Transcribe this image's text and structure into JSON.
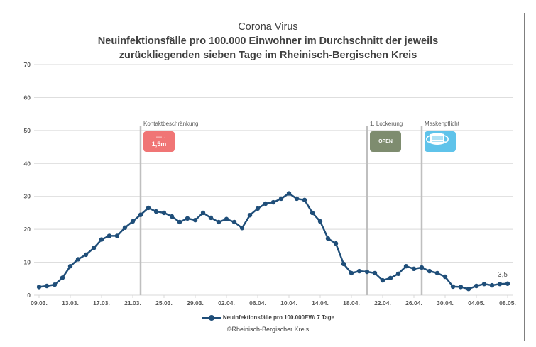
{
  "chart_data": {
    "type": "line",
    "title": "Corona Virus",
    "subtitle_lines": [
      "Neuinfektionsfälle pro 100.000 Einwohner im Durchschnitt der jeweils",
      "zurückliegenden sieben Tage im Rheinisch-Bergischen Kreis"
    ],
    "xlabel": "",
    "ylabel": "",
    "ylim": [
      0,
      70
    ],
    "yticks": [
      0,
      10,
      20,
      30,
      40,
      50,
      60,
      70
    ],
    "grid": true,
    "x": [
      "09.03.",
      "10.03.",
      "11.03.",
      "12.03.",
      "13.03.",
      "14.03.",
      "15.03.",
      "16.03.",
      "17.03.",
      "18.03.",
      "19.03.",
      "20.03.",
      "21.03.",
      "22.03.",
      "23.03.",
      "24.03.",
      "25.03.",
      "26.03.",
      "27.03.",
      "28.03.",
      "29.03.",
      "30.03.",
      "31.03.",
      "01.04.",
      "02.04.",
      "03.04.",
      "04.04.",
      "05.04.",
      "06.04.",
      "07.04.",
      "08.04.",
      "09.04.",
      "10.04.",
      "11.04.",
      "12.04.",
      "13.04.",
      "14.04.",
      "15.04.",
      "16.04.",
      "17.04.",
      "18.04.",
      "19.04.",
      "20.04.",
      "21.04.",
      "22.04.",
      "23.04.",
      "24.04.",
      "25.04.",
      "26.04.",
      "27.04.",
      "28.04.",
      "29.04.",
      "30.04.",
      "01.05.",
      "02.05.",
      "03.05.",
      "04.05.",
      "05.05.",
      "06.05.",
      "07.05.",
      "08.05."
    ],
    "xtick_labels": [
      "09.03.",
      "13.03.",
      "17.03.",
      "21.03.",
      "25.03.",
      "29.03.",
      "02.04.",
      "06.04.",
      "10.04.",
      "14.04.",
      "18.04.",
      "22.04.",
      "26.04.",
      "30.04.",
      "04.05.",
      "08.05."
    ],
    "series": [
      {
        "name": "Neuinfektionsfälle pro 100.000EW/ 7 Tage",
        "color": "#1f4e79",
        "values": [
          2.5,
          2.8,
          3.2,
          5.3,
          8.8,
          10.9,
          12.3,
          14.3,
          16.9,
          18.0,
          18.0,
          20.5,
          22.4,
          24.4,
          26.5,
          25.4,
          25.0,
          23.9,
          22.2,
          23.3,
          22.8,
          25.0,
          23.5,
          22.2,
          23.1,
          22.2,
          20.4,
          24.3,
          26.3,
          27.8,
          28.2,
          29.3,
          30.9,
          29.3,
          28.9,
          25.0,
          22.4,
          17.2,
          15.7,
          9.5,
          6.7,
          7.3,
          7.1,
          6.7,
          4.5,
          5.2,
          6.5,
          8.8,
          8.0,
          8.4,
          7.3,
          6.7,
          5.6,
          2.6,
          2.5,
          1.9,
          2.8,
          3.4,
          3.0,
          3.4,
          3.5
        ]
      }
    ],
    "annotations": [
      {
        "label": "Kontaktbeschränkung",
        "x": "22.03.",
        "icon": "distance-1-5m-icon",
        "icon_text": "1,5m",
        "icon_color": "#f07575"
      },
      {
        "label": "1. Lockerung",
        "x": "20.04.",
        "icon": "open-sign-icon",
        "icon_text": "OPEN",
        "icon_color": "#7e8c6f"
      },
      {
        "label": "Maskenpflicht",
        "x": "27.04.",
        "icon": "face-mask-icon",
        "icon_text": "",
        "icon_color": "#5fc3ea"
      }
    ],
    "last_value_label": "3,5",
    "legend_position": "bottom"
  },
  "footer": {
    "credit": "©Rheinisch-Bergischer Kreis"
  }
}
